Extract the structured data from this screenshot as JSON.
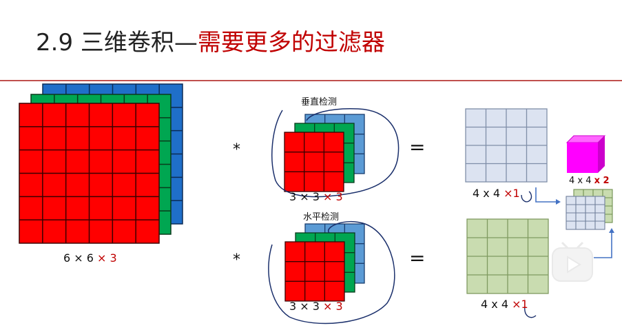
{
  "title": {
    "prefix": "2.9 三维卷积—",
    "highlight": "需要更多的过滤器"
  },
  "colors": {
    "red": "#ff0000",
    "green": "#00a651",
    "blue": "#1f6fc9",
    "light_blue": "#dce3f1",
    "light_green": "#c9dcb0",
    "magenta": "#ff00ff",
    "accent": "#c00000"
  },
  "input": {
    "label_prefix": "6 × 6",
    "label_suffix": "× 3"
  },
  "filter_vertical": {
    "caption": "垂直检测",
    "label_prefix": "3 × 3",
    "label_suffix": "× 3"
  },
  "filter_horizontal": {
    "caption": "水平检测",
    "label_prefix": "3 × 3",
    "label_suffix": "× 3"
  },
  "operators": {
    "conv": "*",
    "equals": "="
  },
  "output1": {
    "label_prefix": "4 x 4",
    "label_suffix": "×1"
  },
  "output2": {
    "label_prefix": "4 x 4",
    "label_suffix": "×1"
  },
  "stacked": {
    "label_prefix": "4 x 4",
    "label_suffix": "x 2"
  }
}
